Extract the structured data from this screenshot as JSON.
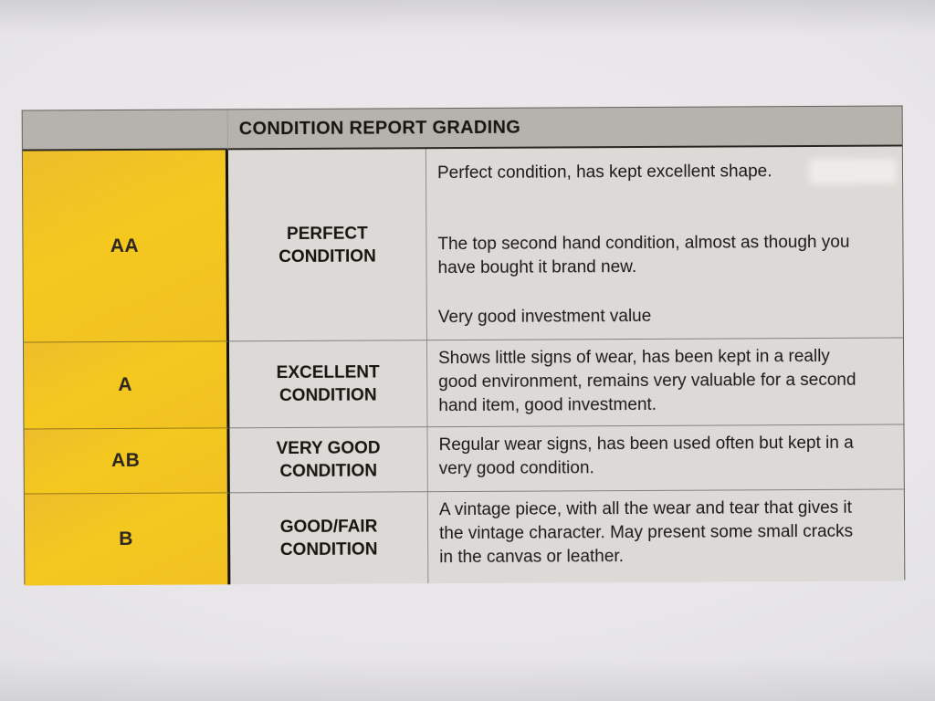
{
  "table": {
    "header": {
      "title": "CONDITION REPORT GRADING"
    },
    "rows": [
      {
        "grade": "AA",
        "condition_lines": [
          "PERFECT",
          "CONDITION"
        ],
        "paragraphs": [
          "Perfect condition, has kept excellent shape.",
          "The top second hand condition, almost as though you have bought it brand new.",
          "Very good investment value"
        ]
      },
      {
        "grade": "A",
        "condition_lines": [
          "EXCELLENT",
          "CONDITION"
        ],
        "paragraphs": [
          "Shows little signs of wear, has been kept in a really good environment, remains very valuable for a second hand item, good investment."
        ]
      },
      {
        "grade": "AB",
        "condition_lines": [
          "VERY GOOD",
          "CONDITION"
        ],
        "paragraphs": [
          "Regular wear signs, has been used often but kept in a very good condition."
        ]
      },
      {
        "grade": "B",
        "condition_lines": [
          "GOOD/FAIR",
          "CONDITION"
        ],
        "paragraphs": [
          "A vintage piece, with all the wear and tear that gives it the vintage character. May present some small cracks in the canvas or leather."
        ]
      }
    ]
  },
  "colors": {
    "grade_cell_yellow": "#F2C422",
    "header_bar_gray": "#B6B3AE",
    "body_cell_gray": "#DCDAD6",
    "photo_background": "#E8E6E9",
    "border_dark": "#17130C",
    "text_dark": "#1C1A17"
  }
}
